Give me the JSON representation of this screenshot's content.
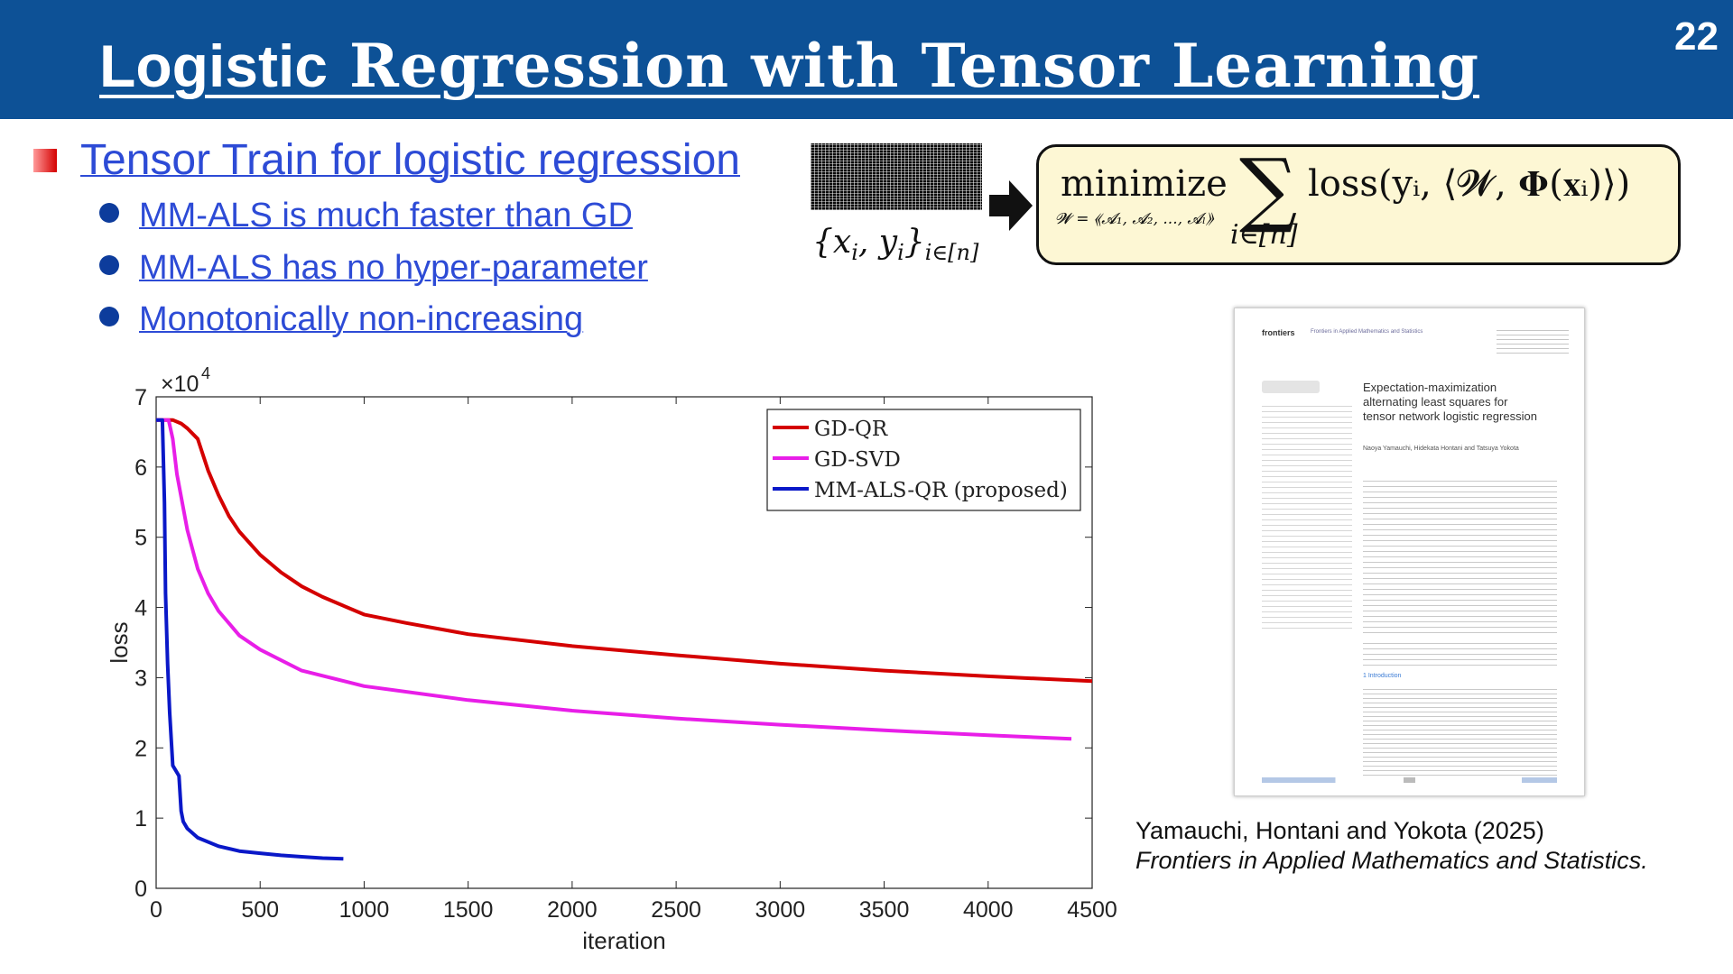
{
  "header": {
    "title_part1": "Logistic",
    "title_part2": " Regression with Tensor Learning",
    "page_number": "22"
  },
  "section": {
    "title": "Tensor Train for logistic regression",
    "bullets": [
      "MM-ALS is much faster than GD",
      "MM-ALS has no hyper-parameter",
      "Monotonically non-increasing"
    ]
  },
  "formula": {
    "data_set": "{x",
    "data_set_mid": "i",
    "data_set_tail": ", y",
    "data_set_tail2": "i",
    "data_set_end": "}",
    "data_set_index": "i∈[n]",
    "minimize": "minimize",
    "sum_symbol": "∑",
    "sum_index": "i∈[n]",
    "objective": "loss(yᵢ, ⟨𝓦, 𝚽(𝐱ᵢ)⟩)",
    "constraint": "𝓦 = ⟪𝓐₁, 𝓐₂, ..., 𝓐ₗ⟫"
  },
  "chart_data": {
    "type": "line",
    "xlabel": "iteration",
    "ylabel": "loss",
    "y_multiplier": "×10",
    "y_exponent": "4",
    "xlim": [
      0,
      4500
    ],
    "ylim": [
      0,
      7
    ],
    "xticks": [
      0,
      500,
      1000,
      1500,
      2000,
      2500,
      3000,
      3500,
      4000,
      4500
    ],
    "yticks": [
      0,
      1,
      2,
      3,
      4,
      5,
      6,
      7
    ],
    "legend_position": "top-right",
    "series": [
      {
        "name": "GD-QR",
        "color": "#d40000",
        "x": [
          0,
          80,
          120,
          150,
          200,
          250,
          300,
          350,
          400,
          500,
          600,
          700,
          800,
          1000,
          1200,
          1500,
          2000,
          2500,
          3000,
          3500,
          4000,
          4500
        ],
        "y": [
          6.67,
          6.67,
          6.62,
          6.55,
          6.4,
          5.95,
          5.6,
          5.3,
          5.08,
          4.75,
          4.5,
          4.3,
          4.15,
          3.9,
          3.78,
          3.62,
          3.45,
          3.32,
          3.2,
          3.1,
          3.02,
          2.95
        ]
      },
      {
        "name": "GD-SVD",
        "color": "#e81ee8",
        "x": [
          0,
          60,
          80,
          100,
          150,
          200,
          250,
          300,
          400,
          500,
          700,
          1000,
          1500,
          2000,
          2500,
          3000,
          3500,
          4000,
          4400
        ],
        "y": [
          6.67,
          6.67,
          6.4,
          5.9,
          5.1,
          4.55,
          4.2,
          3.95,
          3.6,
          3.4,
          3.1,
          2.88,
          2.68,
          2.53,
          2.42,
          2.33,
          2.25,
          2.18,
          2.13
        ]
      },
      {
        "name": "MM-ALS-QR (proposed)",
        "color": "#0a18c8",
        "x": [
          0,
          30,
          40,
          45,
          55,
          65,
          80,
          100,
          110,
          120,
          130,
          150,
          200,
          300,
          400,
          500,
          600,
          700,
          800,
          900
        ],
        "y": [
          6.67,
          6.67,
          5.5,
          4.2,
          3.2,
          2.5,
          1.75,
          1.65,
          1.6,
          1.1,
          0.95,
          0.85,
          0.72,
          0.6,
          0.53,
          0.5,
          0.47,
          0.45,
          0.43,
          0.42
        ]
      }
    ]
  },
  "paper": {
    "logo": "frontiers",
    "journal_line": "Frontiers in Applied Mathematics and Statistics",
    "title": "Expectation-maximization alternating least squares for tensor network logistic regression",
    "authors": "Naoya Yamauchi, Hidekata Hontani and Tatsuya Yokota",
    "intro_heading": "1 Introduction"
  },
  "citation": {
    "line1": "Yamauchi, Hontani and Yokota (2025)",
    "line2": "Frontiers in Applied Mathematics and Statistics."
  }
}
